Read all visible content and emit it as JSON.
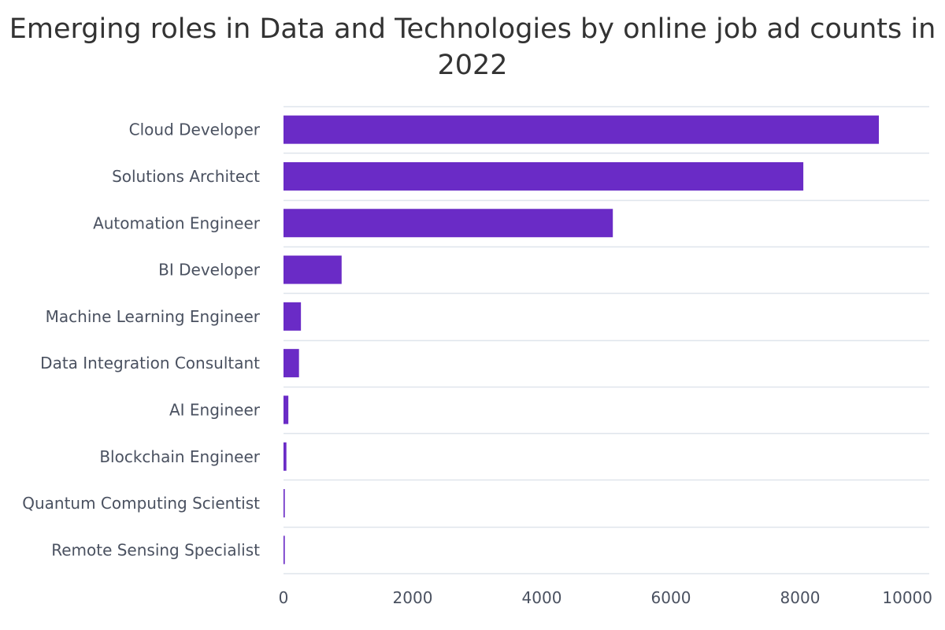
{
  "chart_data": {
    "type": "bar",
    "orientation": "horizontal",
    "title": "Emerging roles in Data and Technologies by online job ad counts in 2022",
    "xlabel": "",
    "ylabel": "",
    "categories": [
      "Cloud Developer",
      "Solutions Architect",
      "Automation Engineer",
      "BI Developer",
      "Machine Learning Engineer",
      "Data Integration Consultant",
      "AI Engineer",
      "Blockchain Engineer",
      "Quantum Computing Scientist",
      "Remote Sensing Specialist"
    ],
    "values": [
      9220,
      8050,
      5100,
      900,
      270,
      240,
      75,
      45,
      20,
      20
    ],
    "xlim": [
      0,
      10000
    ],
    "xticks": [
      "0",
      "2000",
      "4000",
      "6000",
      "8000",
      "10000"
    ],
    "grid": "horizontal category separators",
    "legend": "none",
    "bar_color": "#6a2bc6",
    "grid_color": "#dfe5ec"
  }
}
